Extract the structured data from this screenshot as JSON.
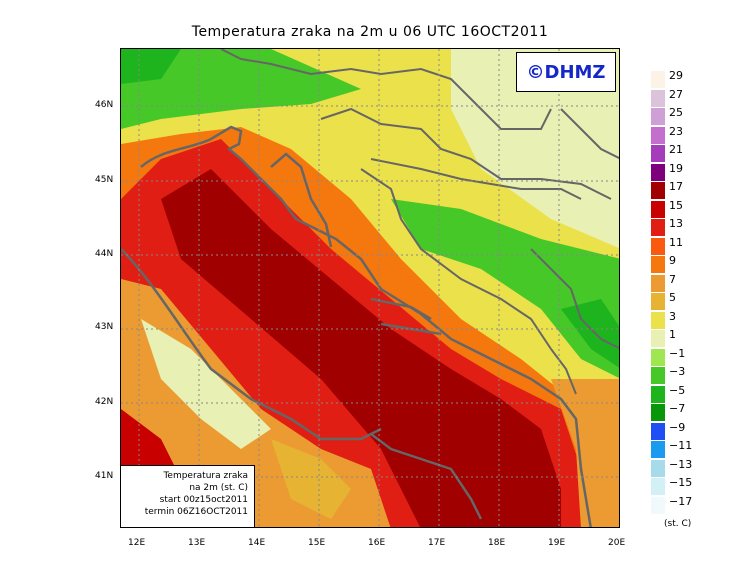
{
  "title": "Temperatura zraka na 2m u 06 UTC 16OCT2011",
  "logo": "©DHMZ",
  "info_box": {
    "line1": "Temperatura zraka",
    "line2": "na 2m (st. C)",
    "line3": "start 00z15oct2011",
    "line4": "termin 06Z16OCT2011"
  },
  "lat_labels": [
    "46N",
    "45N",
    "44N",
    "43N",
    "42N",
    "41N"
  ],
  "lon_labels": [
    "12E",
    "13E",
    "14E",
    "15E",
    "16E",
    "17E",
    "18E",
    "19E",
    "20E"
  ],
  "legend": {
    "units": "(st. C)",
    "labels": [
      "29",
      "27",
      "25",
      "23",
      "21",
      "19",
      "17",
      "15",
      "13",
      "11",
      "9",
      "7",
      "5",
      "3",
      "1",
      "−1",
      "−3",
      "−5",
      "−7",
      "−9",
      "−11",
      "−13",
      "−15",
      "−17"
    ],
    "colors": [
      "#fdf2e6",
      "#dcc3dc",
      "#cfa0d6",
      "#c46fcd",
      "#a53cba",
      "#7d007d",
      "#a00000",
      "#c80000",
      "#e11e14",
      "#fa5a0f",
      "#f5780f",
      "#eb9b32",
      "#e6b432",
      "#ebe14b",
      "#e8f0b4",
      "#a0e650",
      "#46c828",
      "#1eb41e",
      "#0a960a",
      "#1f4ef5",
      "#1a9bf0",
      "#a6dcea",
      "#d2f0f5",
      "#f0fafc"
    ]
  }
}
